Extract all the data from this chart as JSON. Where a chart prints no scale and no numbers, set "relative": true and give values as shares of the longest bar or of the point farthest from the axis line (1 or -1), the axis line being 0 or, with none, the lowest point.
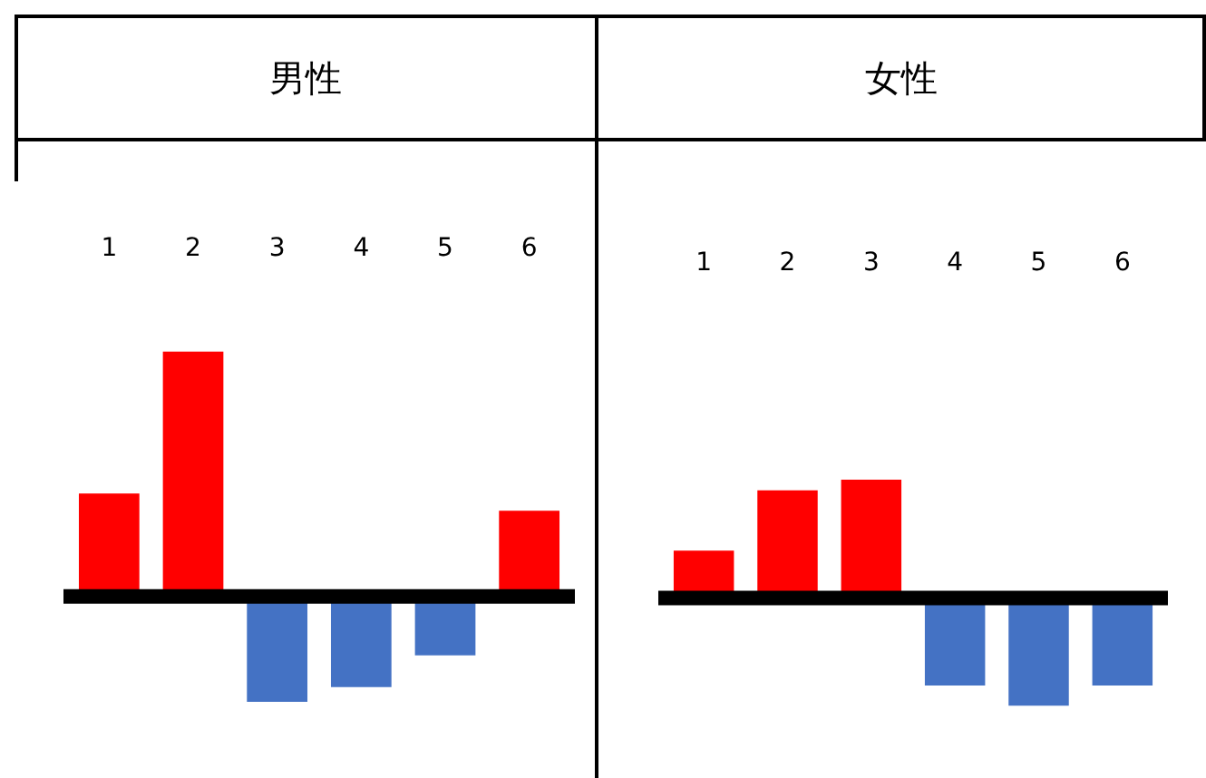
{
  "chart_data": [
    {
      "type": "bar",
      "title": "男性",
      "relative": true,
      "categories": [
        "1",
        "2",
        "3",
        "4",
        "5",
        "6"
      ],
      "ref_lines": [
        {
          "axis": "y",
          "value": 0,
          "color": "#000000"
        }
      ],
      "series": [
        {
          "values": [
            0.42,
            1,
            -0.43,
            -0.37,
            -0.24,
            0.35
          ],
          "colors": [
            "#ff0000",
            "#ff0000",
            "#4472c4",
            "#4472c4",
            "#4472c4",
            "#ff0000"
          ]
        }
      ]
    },
    {
      "type": "bar",
      "title": "女性",
      "relative": true,
      "categories": [
        "1",
        "2",
        "3",
        "4",
        "5",
        "6"
      ],
      "ref_lines": [
        {
          "axis": "y",
          "value": 0,
          "color": "#000000"
        }
      ],
      "series": [
        {
          "values": [
            0.4,
            0.91,
            1,
            -0.74,
            -0.91,
            -0.74
          ],
          "colors": [
            "#ff0000",
            "#ff0000",
            "#ff0000",
            "#4472c4",
            "#4472c4",
            "#4472c4"
          ]
        }
      ]
    }
  ]
}
